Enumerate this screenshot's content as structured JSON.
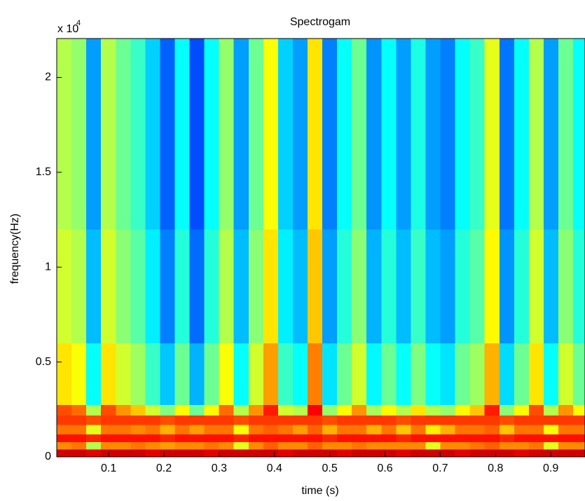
{
  "chart_data": {
    "type": "spectrogram",
    "title": "Spectrogam",
    "x_label": "time (s)",
    "y_label": "frequency(Hz)",
    "y_scale_label": "x 10",
    "y_scale_exponent": "4",
    "xlim": [
      0.006,
      0.962
    ],
    "ylim": [
      0,
      22050
    ],
    "clim": [
      0,
      100
    ],
    "colormap": "jet",
    "xticks": [
      0.1,
      0.2,
      0.3,
      0.4,
      0.5,
      0.6,
      0.7,
      0.8,
      0.9
    ],
    "yticks": [
      0,
      {
        "value": 5000,
        "label": "0.5"
      },
      {
        "value": 10000,
        "label": "1"
      },
      {
        "value": 15000,
        "label": "1.5"
      },
      {
        "value": 20000,
        "label": "2"
      }
    ],
    "x": [
      0.0193,
      0.046,
      0.0727,
      0.0994,
      0.1261,
      0.1528,
      0.1795,
      0.2062,
      0.2329,
      0.2596,
      0.2863,
      0.313,
      0.3397,
      0.3664,
      0.3931,
      0.4198,
      0.4465,
      0.4732,
      0.4999,
      0.5266,
      0.5533,
      0.58,
      0.6067,
      0.6334,
      0.6601,
      0.6868,
      0.7135,
      0.7402,
      0.7669,
      0.7936,
      0.8203,
      0.847,
      0.8737,
      0.9004,
      0.9271,
      0.9538
    ],
    "y_edges": [
      0,
      400,
      800,
      1200,
      1700,
      2200,
      2750,
      6000,
      12000,
      22050
    ],
    "values": [
      [
        92,
        92,
        90,
        92,
        92,
        92,
        90,
        92,
        92,
        92,
        90,
        92,
        92,
        92,
        92,
        90,
        92,
        92,
        92,
        90,
        92,
        92,
        92,
        90,
        92,
        92,
        92,
        90,
        92,
        92,
        92,
        90,
        92,
        92,
        92,
        92
      ],
      [
        74,
        76,
        55,
        74,
        74,
        76,
        74,
        72,
        74,
        74,
        76,
        74,
        60,
        74,
        78,
        74,
        74,
        78,
        74,
        74,
        76,
        74,
        74,
        74,
        74,
        60,
        74,
        74,
        76,
        78,
        74,
        74,
        76,
        60,
        74,
        74
      ],
      [
        86,
        86,
        84,
        86,
        86,
        86,
        86,
        84,
        86,
        86,
        86,
        86,
        84,
        86,
        86,
        86,
        86,
        86,
        84,
        86,
        86,
        86,
        86,
        84,
        86,
        86,
        86,
        86,
        86,
        86,
        84,
        86,
        86,
        86,
        86,
        86
      ],
      [
        76,
        76,
        60,
        76,
        76,
        74,
        76,
        70,
        76,
        72,
        76,
        76,
        62,
        76,
        78,
        76,
        72,
        78,
        70,
        76,
        76,
        70,
        76,
        68,
        76,
        64,
        70,
        76,
        76,
        78,
        68,
        76,
        76,
        62,
        76,
        76
      ],
      [
        82,
        82,
        80,
        82,
        82,
        82,
        82,
        80,
        82,
        82,
        82,
        82,
        80,
        82,
        82,
        82,
        82,
        82,
        80,
        82,
        82,
        82,
        82,
        80,
        82,
        82,
        82,
        82,
        82,
        82,
        80,
        82,
        82,
        82,
        82,
        82
      ],
      [
        80,
        77,
        55,
        80,
        73,
        68,
        58,
        50,
        63,
        48,
        63,
        77,
        55,
        73,
        85,
        58,
        55,
        88,
        52,
        63,
        73,
        54,
        63,
        55,
        65,
        55,
        52,
        63,
        68,
        85,
        51,
        63,
        80,
        55,
        73,
        63
      ],
      [
        65,
        62,
        38,
        65,
        58,
        53,
        43,
        32,
        48,
        30,
        48,
        62,
        38,
        58,
        72,
        43,
        38,
        75,
        35,
        48,
        58,
        37,
        48,
        38,
        50,
        38,
        35,
        48,
        53,
        70,
        34,
        48,
        65,
        38,
        58,
        48
      ],
      [
        58,
        55,
        31,
        58,
        51,
        46,
        36,
        25,
        41,
        23,
        41,
        55,
        31,
        51,
        65,
        36,
        31,
        68,
        28,
        41,
        51,
        30,
        41,
        31,
        43,
        31,
        28,
        41,
        46,
        63,
        27,
        41,
        58,
        31,
        51,
        41
      ],
      [
        55,
        52,
        28,
        55,
        48,
        43,
        33,
        22,
        38,
        20,
        38,
        52,
        28,
        48,
        62,
        33,
        28,
        65,
        25,
        38,
        48,
        27,
        38,
        28,
        40,
        28,
        25,
        38,
        43,
        60,
        24,
        38,
        55,
        28,
        48,
        38
      ]
    ]
  }
}
